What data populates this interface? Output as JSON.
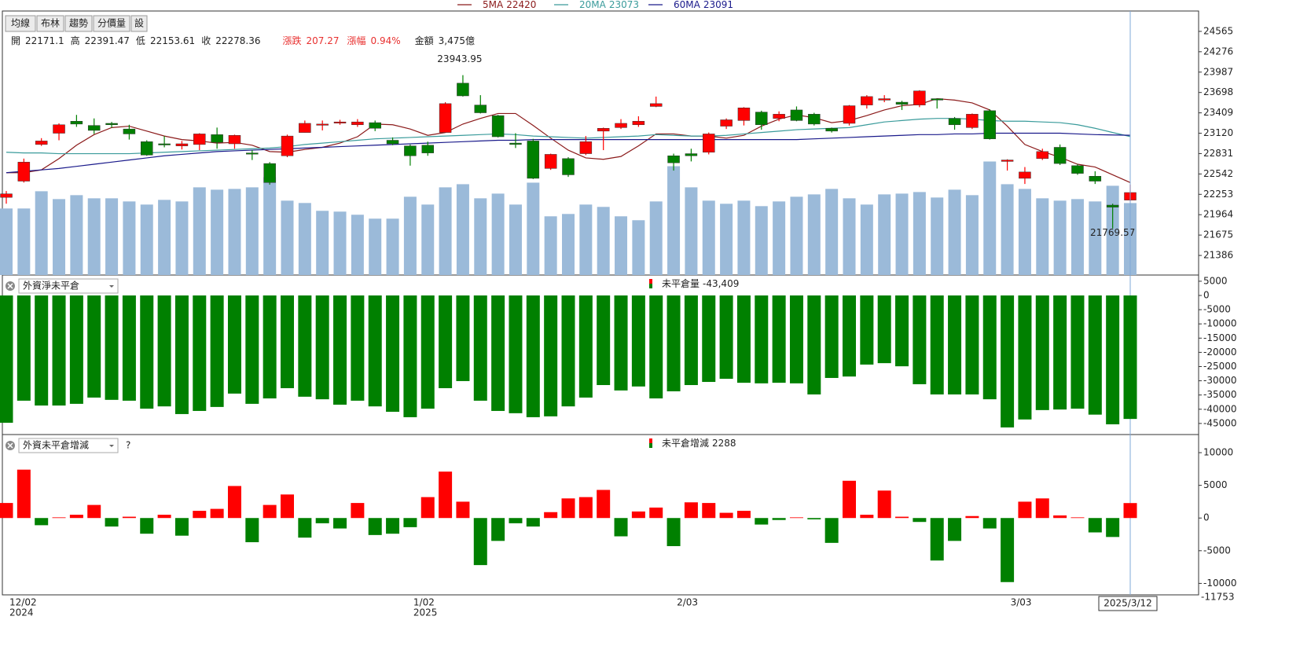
{
  "toolbar": [
    "均線",
    "布林",
    "趨勢",
    "分價量",
    "設"
  ],
  "chart_data": [
    {
      "type": "candlestick",
      "categories": [
        "12/02",
        null,
        null,
        null,
        null,
        null,
        null,
        null,
        null,
        null,
        null,
        null,
        null,
        null,
        null,
        null,
        null,
        null,
        null,
        null,
        null,
        null,
        null,
        "1/02",
        null,
        null,
        null,
        null,
        null,
        null,
        null,
        null,
        null,
        null,
        null,
        null,
        null,
        null,
        "2/03",
        null,
        null,
        null,
        null,
        null,
        null,
        null,
        null,
        null,
        null,
        null,
        null,
        null,
        null,
        null,
        null,
        null,
        null,
        "3/03",
        null,
        null,
        null,
        null,
        null,
        null,
        null
      ],
      "years": [
        "2024",
        null,
        null,
        null,
        null,
        null,
        null,
        null,
        null,
        null,
        null,
        null,
        null,
        null,
        null,
        null,
        null,
        null,
        null,
        null,
        null,
        null,
        null,
        "2025",
        null,
        null,
        null,
        null,
        null,
        null,
        null,
        null,
        null,
        null,
        null,
        null,
        null,
        null,
        null,
        null,
        null,
        null,
        null,
        null,
        null,
        null,
        null,
        null,
        null,
        null,
        null,
        null,
        null,
        null,
        null,
        null,
        null,
        null,
        null,
        null,
        null,
        null,
        null,
        null,
        null
      ],
      "cursor_label": "2025/3/12",
      "info": [
        {
          "label": "開",
          "value": 22171.1
        },
        {
          "label": "高",
          "value": 22391.47
        },
        {
          "label": "低",
          "value": 22153.61
        },
        {
          "label": "收",
          "value": 22278.36
        },
        {
          "label": "漲跌",
          "value": 207.27,
          "color": "#e8302f"
        },
        {
          "label": "漲幅",
          "value": 0.94,
          "value_label": "0.94%",
          "color": "#e8302f"
        },
        {
          "label": "金額",
          "value": 3475,
          "value_label": "3,475億"
        }
      ],
      "open": [
        22210,
        22440,
        22960,
        23120,
        23290,
        23230,
        23260,
        23180,
        23000,
        22970,
        22940,
        22960,
        23100,
        22970,
        22840,
        22690,
        22800,
        23130,
        23240,
        23270,
        23240,
        23270,
        23020,
        22940,
        22950,
        23130,
        23830,
        23520,
        23370,
        22980,
        23010,
        22620,
        22760,
        22830,
        23150,
        23200,
        23240,
        23500,
        22800,
        22830,
        22850,
        23220,
        23300,
        23420,
        23330,
        23450,
        23390,
        23190,
        23260,
        23520,
        23590,
        23560,
        23520,
        23610,
        23330,
        23200,
        23440,
        22720,
        22480,
        22760,
        22920,
        22660,
        22510,
        22100,
        22171.1
      ],
      "high": [
        22300,
        22760,
        23050,
        23260,
        23380,
        23330,
        23280,
        23240,
        23020,
        23080,
        23010,
        23120,
        23200,
        23100,
        22880,
        22710,
        23100,
        23300,
        23300,
        23310,
        23320,
        23300,
        23060,
        22960,
        23000,
        23560,
        23943.95,
        23660,
        23380,
        23120,
        23040,
        22830,
        22780,
        23080,
        23200,
        23320,
        23360,
        23640,
        22830,
        22900,
        23130,
        23330,
        23490,
        23440,
        23430,
        23500,
        23410,
        23200,
        23520,
        23660,
        23660,
        23580,
        23730,
        23610,
        23350,
        23400,
        23460,
        22750,
        22640,
        22900,
        22960,
        22680,
        22580,
        22120,
        22391.47
      ],
      "low": [
        22120,
        22420,
        22940,
        23020,
        23210,
        23110,
        23200,
        23030,
        22800,
        22920,
        22890,
        22880,
        22900,
        22900,
        22740,
        22390,
        22780,
        23130,
        23160,
        23240,
        23210,
        23150,
        22950,
        22660,
        22800,
        23130,
        23640,
        23400,
        23060,
        22910,
        22470,
        22600,
        22500,
        22810,
        22880,
        23180,
        23210,
        23490,
        22590,
        22720,
        22820,
        23180,
        23230,
        23170,
        23290,
        23290,
        23230,
        23130,
        23230,
        23470,
        23560,
        23450,
        23490,
        23470,
        23170,
        23180,
        23030,
        22590,
        22400,
        22740,
        22670,
        22530,
        22400,
        21769.57,
        22153.61
      ],
      "close": [
        22260,
        22710,
        23010,
        23240,
        23250,
        23160,
        23240,
        23110,
        22810,
        22960,
        22970,
        23110,
        22990,
        23090,
        22830,
        22420,
        23080,
        23260,
        23250,
        23280,
        23280,
        23190,
        22970,
        22800,
        22840,
        23540,
        23650,
        23410,
        23070,
        22960,
        22480,
        22820,
        22530,
        23000,
        23190,
        23260,
        23290,
        23540,
        22700,
        22800,
        23110,
        23310,
        23480,
        23240,
        23390,
        23300,
        23250,
        23150,
        23510,
        23640,
        23610,
        23530,
        23720,
        23590,
        23240,
        23390,
        23040,
        22740,
        22570,
        22860,
        22690,
        22550,
        22440,
        22071,
        22278.36
      ],
      "volume": [
        3213,
        3213,
        4045,
        3667,
        3856,
        3704,
        3704,
        3553,
        3402,
        3629,
        3553,
        4234,
        4120,
        4158,
        4234,
        4725,
        3591,
        3478,
        3100,
        3062,
        2911,
        2722,
        2722,
        3780,
        3402,
        4234,
        4385,
        3704,
        3931,
        3402,
        4460,
        2835,
        2948,
        3402,
        3289,
        2835,
        2646,
        3553,
        5254,
        4234,
        3591,
        3440,
        3591,
        3326,
        3553,
        3780,
        3893,
        4158,
        3704,
        3402,
        3893,
        3931,
        4007,
        3742,
        4120,
        3856,
        5481,
        4385,
        4158,
        3704,
        3591,
        3667,
        3553,
        4309,
        3475
      ],
      "up_color": "#ff0000",
      "down_color": "#008000",
      "volume_color": "#9bbad9",
      "high_label_color": "#e0479e",
      "low_label_color": "#2e8b57",
      "series": [
        {
          "name": "5MA",
          "color": "#8b1a1a",
          "values": [
            22560,
            22560,
            22600,
            22760,
            22950,
            23100,
            23200,
            23220,
            23150,
            23080,
            23030,
            23010,
            22980,
            22990,
            22950,
            22860,
            22850,
            22890,
            22920,
            22980,
            23070,
            23250,
            23240,
            23180,
            23090,
            23130,
            23250,
            23330,
            23400,
            23400,
            23230,
            23050,
            22880,
            22770,
            22750,
            22790,
            22940,
            23110,
            23110,
            23080,
            23080,
            23050,
            23090,
            23220,
            23320,
            23380,
            23340,
            23270,
            23300,
            23370,
            23450,
            23510,
            23530,
            23610,
            23590,
            23550,
            23450,
            23220,
            22960,
            22860,
            22780,
            22680,
            22640,
            22530,
            22420
          ]
        },
        {
          "name": "20MA",
          "color": "#3a9b9b",
          "values": [
            22850,
            22840,
            22840,
            22830,
            22830,
            22830,
            22830,
            22830,
            22840,
            22850,
            22860,
            22870,
            22880,
            22890,
            22900,
            22910,
            22930,
            22960,
            22980,
            23000,
            23020,
            23040,
            23050,
            23060,
            23070,
            23080,
            23090,
            23100,
            23110,
            23100,
            23080,
            23070,
            23060,
            23050,
            23060,
            23070,
            23080,
            23100,
            23090,
            23080,
            23080,
            23090,
            23110,
            23130,
            23150,
            23170,
            23180,
            23190,
            23200,
            23240,
            23280,
            23300,
            23320,
            23330,
            23330,
            23320,
            23300,
            23290,
            23290,
            23280,
            23270,
            23240,
            23190,
            23130,
            23073
          ]
        },
        {
          "name": "60MA",
          "color": "#1a1a8b",
          "values": [
            22560,
            22580,
            22600,
            22620,
            22650,
            22680,
            22710,
            22740,
            22770,
            22800,
            22820,
            22840,
            22860,
            22870,
            22880,
            22890,
            22900,
            22910,
            22920,
            22930,
            22940,
            22950,
            22960,
            22970,
            22980,
            22990,
            23000,
            23010,
            23020,
            23020,
            23030,
            23030,
            23030,
            23030,
            23030,
            23030,
            23030,
            23030,
            23030,
            23030,
            23030,
            23030,
            23030,
            23030,
            23030,
            23030,
            23040,
            23050,
            23060,
            23070,
            23080,
            23090,
            23100,
            23100,
            23110,
            23110,
            23120,
            23120,
            23120,
            23120,
            23120,
            23110,
            23100,
            23095,
            23091
          ]
        }
      ],
      "ylim": [
        21108,
        24854
      ],
      "yticks": [
        24565,
        24276,
        23987,
        23698,
        23409,
        23120,
        22831,
        22542,
        22253,
        21964,
        21675,
        21386
      ]
    },
    {
      "type": "bar",
      "selector": "外資淨未平倉",
      "title": "未平倉量",
      "values": [
        -44750,
        -37000,
        -38700,
        -38700,
        -38100,
        -35900,
        -36700,
        -37000,
        -39800,
        -39000,
        -41700,
        -40600,
        -39200,
        -34500,
        -38100,
        -36200,
        -32600,
        -35600,
        -36500,
        -38400,
        -37000,
        -39000,
        -40900,
        -42800,
        -39800,
        -32600,
        -30100,
        -37000,
        -40600,
        -41400,
        -42800,
        -42500,
        -39000,
        -35900,
        -31500,
        -33400,
        -32000,
        -36200,
        -33700,
        -31500,
        -30400,
        -29300,
        -30700,
        -30900,
        -30700,
        -30900,
        -34800,
        -29000,
        -28500,
        -24300,
        -23800,
        -24900,
        -31200,
        -34800,
        -34800,
        -34800,
        -36500,
        -46400,
        -43600,
        -40300,
        -40100,
        -39800,
        -41900,
        -45300,
        -43409
      ],
      "value_labels": [
        null,
        null,
        null,
        null,
        null,
        null,
        null,
        null,
        null,
        null,
        null,
        null,
        null,
        null,
        null,
        null,
        null,
        null,
        null,
        null,
        null,
        null,
        null,
        null,
        null,
        null,
        null,
        null,
        null,
        null,
        null,
        null,
        null,
        null,
        null,
        null,
        null,
        null,
        null,
        null,
        null,
        null,
        null,
        null,
        null,
        null,
        null,
        null,
        null,
        null,
        null,
        null,
        null,
        null,
        null,
        null,
        null,
        null,
        null,
        null,
        null,
        null,
        null,
        null,
        "-43,409"
      ],
      "ylim": [
        -48900,
        7180
      ],
      "yticks": [
        5000,
        0,
        -5000,
        -10000,
        -15000,
        -20000,
        -25000,
        -30000,
        -35000,
        -40000,
        -45000
      ],
      "up_color": "#ff0000",
      "down_color": "#008000"
    },
    {
      "type": "bar",
      "selector": "外資未平倉增減",
      "help": "?",
      "title": "未平倉增減",
      "values": [
        2300,
        7400,
        -1100,
        100,
        500,
        2000,
        -1300,
        200,
        -2400,
        500,
        -2700,
        1100,
        1400,
        4900,
        -3700,
        2000,
        3600,
        -3000,
        -800,
        -1600,
        2300,
        -2600,
        -2400,
        -1400,
        3200,
        7100,
        2500,
        -7200,
        -3500,
        -800,
        -1300,
        900,
        3000,
        3200,
        4300,
        -2800,
        1000,
        1600,
        -4300,
        2400,
        2300,
        800,
        1100,
        -1000,
        -300,
        100,
        -200,
        -3800,
        5700,
        500,
        4200,
        200,
        -600,
        -6500,
        -3500,
        300,
        -1600,
        -9800,
        2500,
        3000,
        400,
        100,
        -2200,
        -2900,
        2288
      ],
      "ylim": [
        -11753,
        12770
      ],
      "yticks": [
        10000,
        5000,
        0,
        -5000,
        -10000
      ],
      "up_color": "#ff0000",
      "down_color": "#008000"
    }
  ]
}
